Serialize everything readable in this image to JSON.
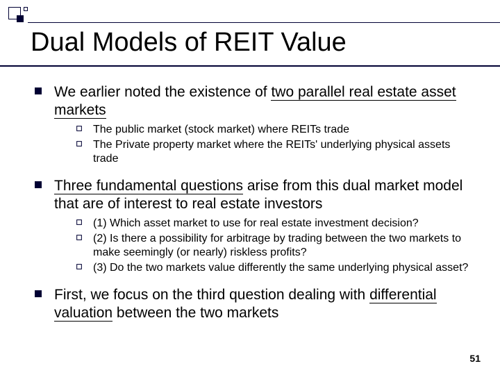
{
  "title": "Dual Models of REIT Value",
  "page_number": "51",
  "colors": {
    "accent": "#000033",
    "background": "#ffffff",
    "text": "#000000"
  },
  "typography": {
    "title_fontsize": 38,
    "l1_fontsize": 21,
    "l2_fontsize": 16,
    "font_family": "Arial"
  },
  "bullets": [
    {
      "segments": [
        {
          "t": "We earlier noted the existence of ",
          "u": false
        },
        {
          "t": "two parallel real estate asset markets",
          "u": true
        }
      ],
      "sub": [
        {
          "t": "The public market (stock market) where REITs trade"
        },
        {
          "t": "The Private property market where the  REITs' underlying physical assets trade"
        }
      ]
    },
    {
      "segments": [
        {
          "t": "Three fundamental questions",
          "u": true
        },
        {
          "t": " arise from this dual market model that are of interest to real estate investors",
          "u": false
        }
      ],
      "sub": [
        {
          "t": "(1) Which asset market to use for real estate investment decision?"
        },
        {
          "t": "(2) Is there a possibility for arbitrage by trading between the two markets to make seemingly (or nearly) riskless profits?"
        },
        {
          "t": "(3) Do the two markets value differently the same underlying physical asset?"
        }
      ]
    },
    {
      "segments": [
        {
          "t": "First, we focus on the third question dealing with ",
          "u": false
        },
        {
          "t": "differential valuation",
          "u": true
        },
        {
          "t": " between the two markets",
          "u": false
        }
      ],
      "sub": []
    }
  ]
}
